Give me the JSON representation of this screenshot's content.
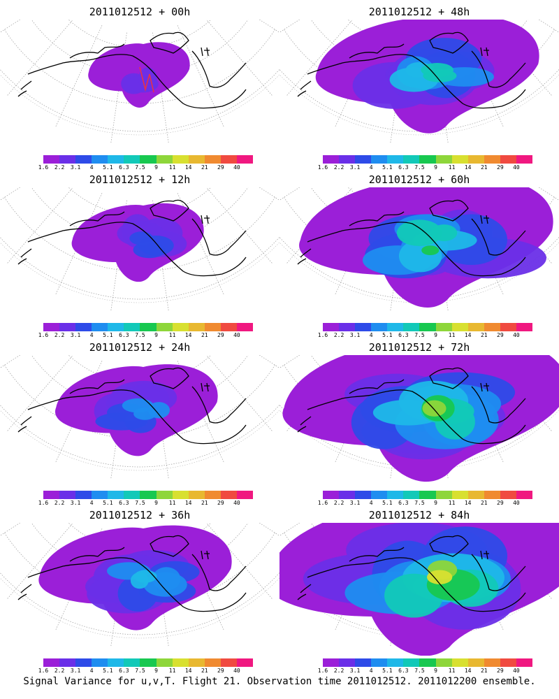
{
  "colorbar": {
    "labels": [
      "1.6",
      "2.2",
      "3.1",
      "4",
      "5.1",
      "6.3",
      "7.5",
      "9",
      "11",
      "14",
      "21",
      "29",
      "40"
    ],
    "colors": [
      "#9b1fd8",
      "#6a2fe8",
      "#2e4be8",
      "#1f8df0",
      "#1fb8e8",
      "#12c9b8",
      "#18c850",
      "#8ed63a",
      "#d8e030",
      "#e8b830",
      "#f08a30",
      "#f04a40",
      "#f01880"
    ]
  },
  "panels": [
    {
      "title": "2011012512 + 00h",
      "spread": 0
    },
    {
      "title": "2011012512 + 48h",
      "spread": 4
    },
    {
      "title": "2011012512 + 12h",
      "spread": 1
    },
    {
      "title": "2011012512 + 60h",
      "spread": 5
    },
    {
      "title": "2011012512 + 24h",
      "spread": 2
    },
    {
      "title": "2011012512 + 72h",
      "spread": 6
    },
    {
      "title": "2011012512 + 36h",
      "spread": 3
    },
    {
      "title": "2011012512 + 84h",
      "spread": 7
    }
  ],
  "footer": "Signal Variance for u,v,T. Flight 21. Observation time 2011012512. 2011012200 ensemble."
}
